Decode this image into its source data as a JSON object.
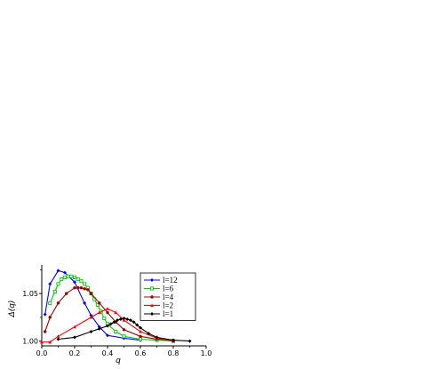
{
  "chart_data": {
    "type": "line",
    "title": "",
    "xlabel": "q",
    "ylabel": "Δ(q)",
    "xlim": [
      0.0,
      1.0
    ],
    "ylim": [
      0.995,
      1.08
    ],
    "xticks": [
      "0.0",
      "0.2",
      "0.4",
      "0.6",
      "0.8",
      "1.0"
    ],
    "yticks": [
      "1.00",
      "1.05"
    ],
    "legend_position": "right",
    "grid": false,
    "series": [
      {
        "name": "l=12",
        "color": "#0000ff",
        "marker": "diamond",
        "x": [
          0.02,
          0.05,
          0.1,
          0.14,
          0.2,
          0.26,
          0.3,
          0.35,
          0.4,
          0.5,
          0.6
        ],
        "y": [
          1.028,
          1.06,
          1.074,
          1.072,
          1.062,
          1.04,
          1.027,
          1.015,
          1.006,
          1.003,
          1.001
        ]
      },
      {
        "name": "l=6",
        "color": "#00cc00",
        "marker": "square-open",
        "x": [
          0.05,
          0.08,
          0.1,
          0.12,
          0.14,
          0.16,
          0.18,
          0.2,
          0.22,
          0.24,
          0.26,
          0.28,
          0.3,
          0.32,
          0.34,
          0.36,
          0.38,
          0.4,
          0.45,
          0.5,
          0.6,
          0.7,
          0.8
        ],
        "y": [
          1.04,
          1.052,
          1.06,
          1.065,
          1.067,
          1.068,
          1.068,
          1.067,
          1.065,
          1.063,
          1.06,
          1.056,
          1.05,
          1.044,
          1.038,
          1.031,
          1.024,
          1.018,
          1.01,
          1.005,
          1.002,
          1.001,
          1.0
        ]
      },
      {
        "name": "l=4",
        "color": "#a00000",
        "marker": "circle",
        "x": [
          0.02,
          0.05,
          0.1,
          0.15,
          0.2,
          0.22,
          0.24,
          0.26,
          0.28,
          0.3,
          0.35,
          0.4,
          0.45,
          0.5,
          0.6,
          0.7,
          0.8
        ],
        "y": [
          1.01,
          1.025,
          1.04,
          1.05,
          1.056,
          1.056,
          1.056,
          1.055,
          1.054,
          1.05,
          1.04,
          1.03,
          1.02,
          1.012,
          1.005,
          1.002,
          1.001
        ]
      },
      {
        "name": "l=2",
        "color": "#ff0000",
        "marker": "triangle",
        "x": [
          0.0,
          0.05,
          0.1,
          0.2,
          0.3,
          0.35,
          0.4,
          0.45,
          0.5,
          0.6,
          0.7,
          0.8
        ],
        "y": [
          0.999,
          0.999,
          1.005,
          1.015,
          1.025,
          1.03,
          1.034,
          1.03,
          1.022,
          1.01,
          1.003,
          1.0
        ]
      },
      {
        "name": "l=1",
        "color": "#000000",
        "marker": "diamond",
        "x": [
          0.1,
          0.2,
          0.3,
          0.35,
          0.4,
          0.42,
          0.44,
          0.46,
          0.48,
          0.5,
          0.52,
          0.54,
          0.56,
          0.58,
          0.6,
          0.65,
          0.7,
          0.8,
          0.9
        ],
        "y": [
          1.002,
          1.004,
          1.01,
          1.013,
          1.016,
          1.018,
          1.02,
          1.022,
          1.023,
          1.024,
          1.023,
          1.022,
          1.02,
          1.017,
          1.014,
          1.008,
          1.004,
          1.001,
          1.0
        ]
      }
    ]
  }
}
